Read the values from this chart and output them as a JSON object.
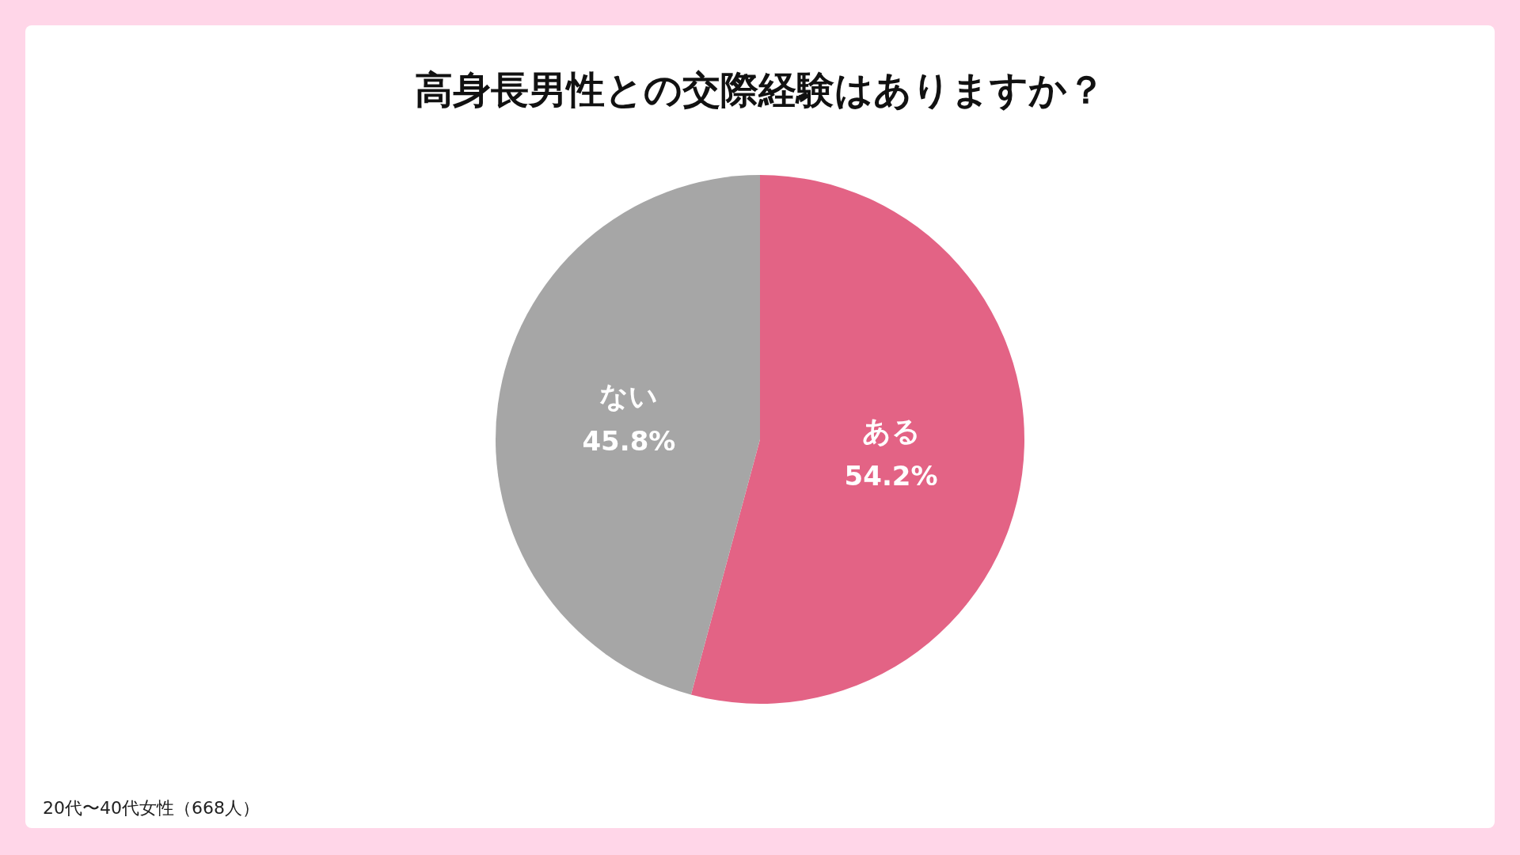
{
  "chart_data": {
    "type": "pie",
    "title": "高身長男性との交際経験はありますか？",
    "categories": [
      "ある",
      "ない"
    ],
    "values": [
      54.2,
      45.8
    ],
    "value_labels": [
      "54.2%",
      "45.8%"
    ],
    "colors": [
      "#e36385",
      "#a6a6a6"
    ],
    "annotations": [
      "20代〜40代女性（668人）"
    ]
  }
}
